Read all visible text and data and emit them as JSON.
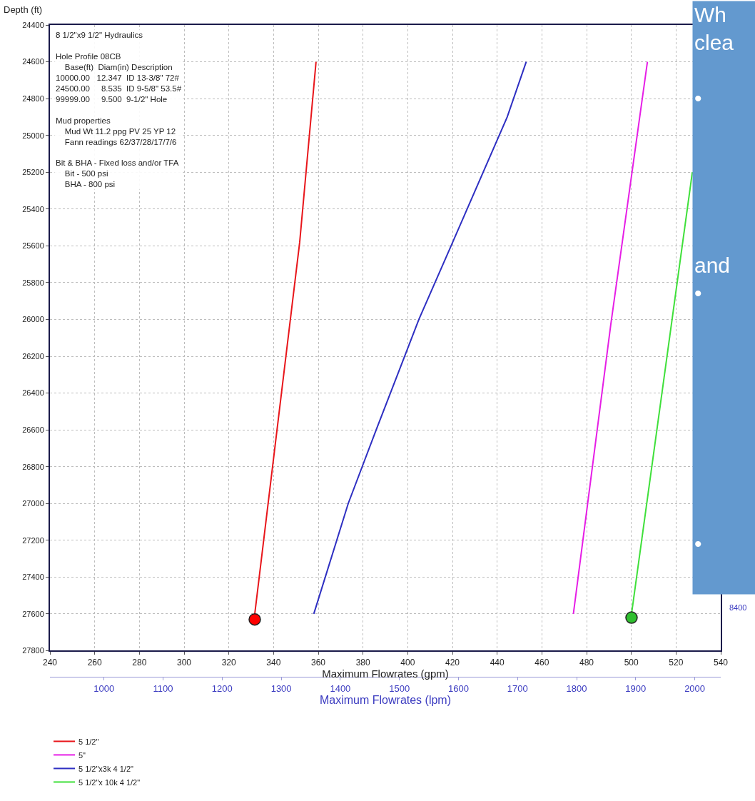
{
  "chart_data": {
    "type": "line",
    "xlabel": "Maximum Flowrates (gpm)",
    "ylabel": "Depth (ft)",
    "x2label": "Maximum Flowrates (lpm)",
    "xlim": [
      240,
      540
    ],
    "xticks": [
      240,
      260,
      280,
      300,
      320,
      340,
      360,
      380,
      400,
      420,
      440,
      460,
      480,
      500,
      520,
      540
    ],
    "ylim": [
      27800,
      24400
    ],
    "yticks": [
      24400,
      24600,
      24800,
      25000,
      25200,
      25400,
      25600,
      25800,
      26000,
      26200,
      26400,
      26600,
      26800,
      27000,
      27200,
      27400,
      27600,
      27800
    ],
    "x2lim": [
      908.5,
      2044
    ],
    "x2ticks": [
      1000,
      1100,
      1200,
      1300,
      1400,
      1500,
      1600,
      1700,
      1800,
      1900,
      2000
    ],
    "grid": true,
    "legend": "bottom left",
    "line_style": "solid",
    "series": [
      {
        "name": "5 1/2\"",
        "color": "#e8161b",
        "x": [
          359,
          351.7,
          331.6
        ],
        "values": [
          24600,
          25580,
          27600
        ]
      },
      {
        "name": "5\"",
        "color": "#e61ee6",
        "x": [
          507.2,
          490.8,
          474.1
        ],
        "values": [
          24600,
          26030,
          27600
        ]
      },
      {
        "name": "5 1/2\"x3k 4 1/2\"",
        "color": "#2e2fc2",
        "x": [
          453,
          444.5,
          419.4,
          405,
          385.9,
          373.4,
          358
        ],
        "values": [
          24600,
          24900,
          25600,
          26000,
          26600,
          27000,
          27600
        ]
      },
      {
        "name": "5 1/2\"x 10k 4 1/2\"",
        "color": "#3fe03a",
        "x": [
          527.3,
          500.1
        ],
        "values": [
          25200,
          27600
        ]
      },
      {
        "type": "scatter",
        "marker": "circle",
        "color": "#ff0000",
        "x": [
          331.6
        ],
        "values": [
          27630
        ]
      },
      {
        "type": "scatter",
        "marker": "circle",
        "color": "#2fbf2f",
        "x": [
          500.1
        ],
        "values": [
          27620
        ]
      }
    ],
    "annotations": [
      "8 1/2\"x9 1/2\" Hydraulics\n\nHole Profile 08CB\n  Base(ft)  Diam(in) Description\n10000.00   12.347  ID 13-3/8\" 72#\n24500.00     8.535  ID 9-5/8\" 53.5#\n99999.00     9.500  9-1/2\" Hole\n\nMud properties\n  Mud Wt 11.2 ppg PV 25 YP 12\n  Fann readings 62/37/28/17/7/6\n\nBit & BHA - Fixed loss and/or TFA\n  Bit - 500 psi\n  BHA - 800 psi",
      "Wh",
      "clea",
      "•",
      "and",
      "•",
      "•",
      "8400"
    ]
  }
}
